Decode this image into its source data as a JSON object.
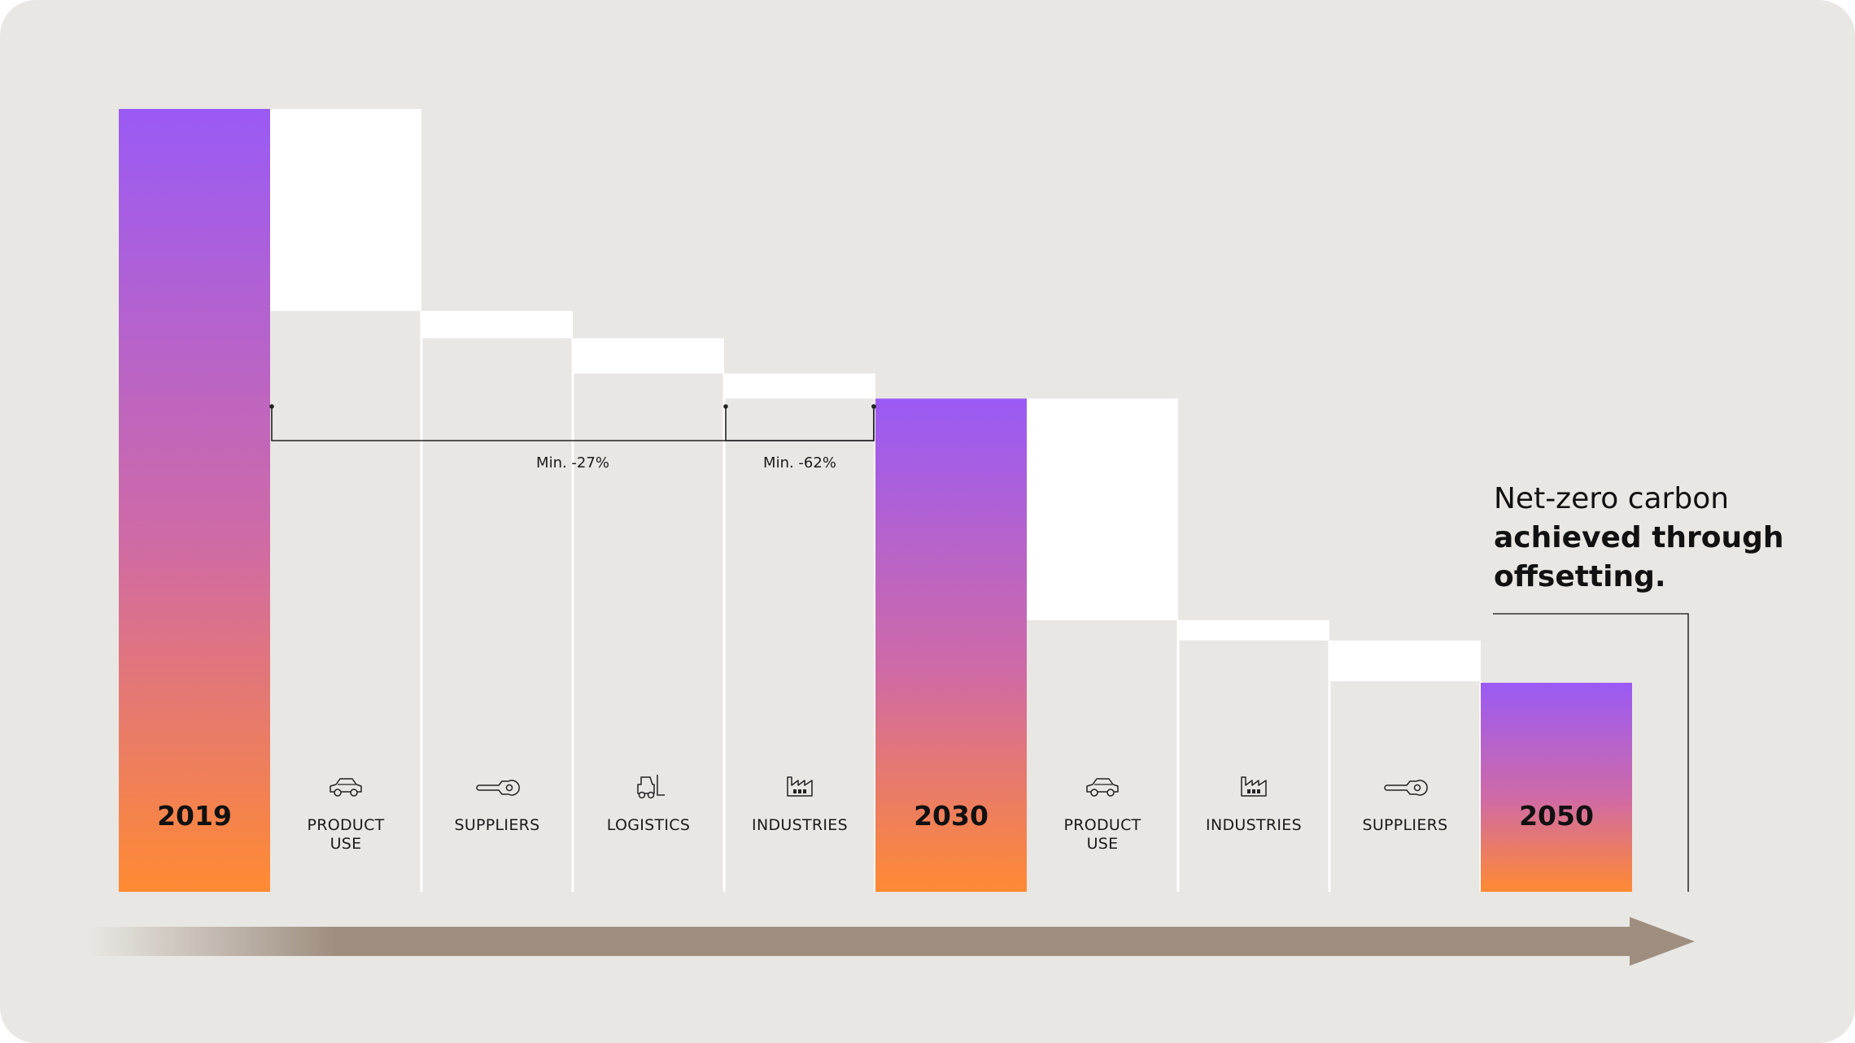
{
  "headline": {
    "line1": "Net-zero carbon",
    "line2": "achieved through offsetting."
  },
  "colors": {
    "gradient_top": "#9a5af5",
    "gradient_mid": "#cf6aa6",
    "gradient_bottom": "#ff8a33",
    "reduction_block": "#ffffff",
    "background": "#e9e7e3",
    "arrow": "#9e8e80"
  },
  "chart_data": {
    "type": "waterfall",
    "title": "",
    "ylim": [
      0,
      100
    ],
    "steps": [
      {
        "kind": "total",
        "label": "2019",
        "value": 100
      },
      {
        "kind": "reduction",
        "label": "PRODUCT USE",
        "value": 25.8,
        "icon": "car-icon"
      },
      {
        "kind": "reduction",
        "label": "SUPPLIERS",
        "value": 3.5,
        "icon": "wrench-icon"
      },
      {
        "kind": "reduction",
        "label": "LOGISTICS",
        "value": 4.5,
        "icon": "forklift-icon"
      },
      {
        "kind": "reduction",
        "label": "INDUSTRIES",
        "value": 3.2,
        "icon": "factory-icon"
      },
      {
        "kind": "total",
        "label": "2030",
        "value": 63
      },
      {
        "kind": "reduction",
        "label": "PRODUCT USE",
        "value": 28.3,
        "icon": "car-icon"
      },
      {
        "kind": "reduction",
        "label": "INDUSTRIES",
        "value": 2.6,
        "icon": "factory-icon"
      },
      {
        "kind": "reduction",
        "label": "SUPPLIERS",
        "value": 5.2,
        "icon": "wrench-icon"
      },
      {
        "kind": "total",
        "label": "2050",
        "value": 26.7
      }
    ],
    "brackets": [
      {
        "label": "Min. -27%",
        "from_step": 1,
        "to_step": 4
      },
      {
        "label": "Min. -62%",
        "from_step": 4,
        "to_step": 4
      }
    ],
    "annotation": "Net-zero carbon achieved through offsetting."
  }
}
